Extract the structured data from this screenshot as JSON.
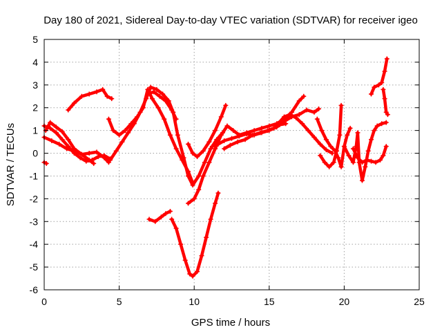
{
  "chart_data": {
    "type": "scatter",
    "title": "Day 180 of 2021, Sidereal Day-to-day VTEC variation (SDTVAR) for receiver igeo",
    "xlabel": "GPS time / hours",
    "ylabel": "SDTVAR / TECUs",
    "xlim": [
      0,
      25
    ],
    "ylim": [
      -6,
      5
    ],
    "xticks": [
      "0",
      "5",
      "10",
      "15",
      "20",
      "25"
    ],
    "yticks": [
      "-6",
      "-5",
      "-4",
      "-3",
      "-2",
      "-1",
      "0",
      "1",
      "2",
      "3",
      "4",
      "5"
    ],
    "grid": true,
    "marker": "plus",
    "color": "#ff0000",
    "series": [
      {
        "points": [
          [
            0.0,
            -0.4
          ],
          [
            0.15,
            -0.45
          ]
        ]
      },
      {
        "points": [
          [
            0.0,
            1.2
          ],
          [
            0.4,
            1.1
          ],
          [
            0.8,
            0.9
          ],
          [
            1.2,
            0.6
          ],
          [
            1.6,
            0.3
          ],
          [
            2.0,
            0.0
          ],
          [
            2.4,
            -0.2
          ],
          [
            2.8,
            -0.35
          ],
          [
            3.2,
            -0.3
          ],
          [
            3.6,
            -0.15
          ],
          [
            4.0,
            -0.1
          ],
          [
            4.4,
            -0.25
          ]
        ]
      },
      {
        "points": [
          [
            0.0,
            0.7
          ],
          [
            0.5,
            0.55
          ],
          [
            1.0,
            0.4
          ],
          [
            1.5,
            0.2
          ],
          [
            2.0,
            0.1
          ],
          [
            2.5,
            -0.05
          ],
          [
            3.0,
            0.0
          ],
          [
            3.5,
            0.05
          ],
          [
            4.0,
            -0.2
          ],
          [
            4.3,
            -0.4
          ]
        ]
      },
      {
        "points": [
          [
            0.1,
            1.0
          ],
          [
            0.4,
            1.35
          ],
          [
            0.8,
            1.15
          ],
          [
            1.2,
            0.95
          ],
          [
            1.6,
            0.6
          ],
          [
            2.0,
            0.2
          ],
          [
            2.5,
            -0.05
          ],
          [
            3.0,
            -0.3
          ],
          [
            3.3,
            -0.45
          ]
        ]
      },
      {
        "points": [
          [
            1.6,
            1.9
          ],
          [
            2.0,
            2.2
          ],
          [
            2.5,
            2.5
          ],
          [
            3.0,
            2.6
          ],
          [
            3.5,
            2.7
          ],
          [
            3.9,
            2.8
          ],
          [
            4.2,
            2.5
          ],
          [
            4.5,
            2.4
          ]
        ]
      },
      {
        "points": [
          [
            4.3,
            1.5
          ],
          [
            4.6,
            1.0
          ],
          [
            5.0,
            0.8
          ],
          [
            5.4,
            1.0
          ],
          [
            5.8,
            1.3
          ],
          [
            6.2,
            1.6
          ],
          [
            6.6,
            2.0
          ],
          [
            6.9,
            2.8
          ],
          [
            7.2,
            2.4
          ],
          [
            7.6,
            2.0
          ],
          [
            8.0,
            1.5
          ],
          [
            8.4,
            0.8
          ],
          [
            8.8,
            0.2
          ],
          [
            9.2,
            -0.3
          ],
          [
            9.6,
            -0.8
          ],
          [
            9.9,
            -1.3
          ]
        ]
      },
      {
        "points": [
          [
            4.4,
            -0.3
          ],
          [
            4.8,
            0.1
          ],
          [
            5.2,
            0.5
          ],
          [
            5.6,
            0.9
          ],
          [
            6.0,
            1.3
          ],
          [
            6.4,
            1.8
          ],
          [
            6.8,
            2.4
          ],
          [
            7.1,
            2.9
          ],
          [
            7.5,
            2.8
          ],
          [
            7.9,
            2.6
          ],
          [
            8.3,
            2.3
          ],
          [
            8.6,
            1.8
          ],
          [
            8.9,
            0.8
          ],
          [
            9.3,
            -0.2
          ],
          [
            9.6,
            -1.0
          ],
          [
            9.9,
            -1.4
          ],
          [
            10.3,
            -1.0
          ],
          [
            10.7,
            -0.4
          ],
          [
            11.1,
            0.2
          ],
          [
            11.5,
            0.6
          ],
          [
            11.9,
            0.9
          ]
        ]
      },
      {
        "points": [
          [
            6.9,
            2.6
          ],
          [
            7.3,
            2.7
          ],
          [
            7.7,
            2.5
          ],
          [
            8.1,
            2.3
          ],
          [
            8.5,
            1.9
          ],
          [
            8.8,
            1.5
          ]
        ]
      },
      {
        "points": [
          [
            7.0,
            -2.9
          ],
          [
            7.4,
            -3.0
          ],
          [
            7.8,
            -2.8
          ],
          [
            8.1,
            -2.65
          ],
          [
            8.4,
            -2.55
          ]
        ]
      },
      {
        "points": [
          [
            8.5,
            -2.9
          ],
          [
            8.8,
            -3.3
          ],
          [
            9.1,
            -4.0
          ],
          [
            9.4,
            -4.7
          ],
          [
            9.7,
            -5.3
          ],
          [
            9.9,
            -5.4
          ],
          [
            10.2,
            -5.2
          ],
          [
            10.5,
            -4.5
          ],
          [
            10.8,
            -3.7
          ],
          [
            11.1,
            -2.9
          ],
          [
            11.4,
            -2.2
          ],
          [
            11.6,
            -1.75
          ]
        ]
      },
      {
        "points": [
          [
            9.6,
            -2.2
          ],
          [
            10.0,
            -2.0
          ],
          [
            10.3,
            -1.6
          ],
          [
            10.6,
            -1.0
          ],
          [
            11.0,
            -0.4
          ],
          [
            11.4,
            0.2
          ],
          [
            11.8,
            0.8
          ],
          [
            12.2,
            1.2
          ],
          [
            12.6,
            1.0
          ],
          [
            13.0,
            0.8
          ],
          [
            13.5,
            0.9
          ],
          [
            14.0,
            1.0
          ],
          [
            14.5,
            1.1
          ],
          [
            15.0,
            1.2
          ],
          [
            15.5,
            1.3
          ],
          [
            16.0,
            1.5
          ],
          [
            16.5,
            1.8
          ],
          [
            17.0,
            2.3
          ],
          [
            17.3,
            2.5
          ]
        ]
      },
      {
        "points": [
          [
            9.6,
            0.4
          ],
          [
            9.9,
            0.0
          ],
          [
            10.2,
            -0.15
          ],
          [
            10.6,
            0.1
          ],
          [
            11.0,
            0.5
          ],
          [
            11.4,
            1.0
          ],
          [
            11.8,
            1.6
          ],
          [
            12.1,
            2.1
          ]
        ]
      },
      {
        "points": [
          [
            11.2,
            0.3
          ],
          [
            11.6,
            0.4
          ],
          [
            12.0,
            0.55
          ],
          [
            12.5,
            0.65
          ],
          [
            13.0,
            0.75
          ],
          [
            13.5,
            0.85
          ],
          [
            14.0,
            0.8
          ],
          [
            14.5,
            0.9
          ],
          [
            15.0,
            1.0
          ],
          [
            15.5,
            1.15
          ],
          [
            16.0,
            1.4
          ],
          [
            16.5,
            1.6
          ],
          [
            17.0,
            1.7
          ],
          [
            17.5,
            1.9
          ],
          [
            18.0,
            1.8
          ],
          [
            18.3,
            1.95
          ]
        ]
      },
      {
        "points": [
          [
            12.0,
            0.2
          ],
          [
            12.4,
            0.35
          ],
          [
            12.9,
            0.5
          ],
          [
            13.4,
            0.6
          ],
          [
            13.9,
            0.8
          ],
          [
            14.4,
            0.9
          ],
          [
            14.9,
            1.0
          ],
          [
            15.3,
            1.1
          ],
          [
            15.7,
            1.25
          ],
          [
            16.1,
            1.3
          ]
        ]
      },
      {
        "points": [
          [
            15.6,
            1.3
          ],
          [
            16.0,
            1.6
          ],
          [
            16.4,
            1.7
          ],
          [
            16.8,
            1.55
          ],
          [
            17.2,
            1.3
          ],
          [
            17.6,
            1.0
          ],
          [
            18.0,
            0.7
          ],
          [
            18.4,
            0.4
          ],
          [
            18.8,
            0.15
          ],
          [
            19.2,
            0.0
          ]
        ]
      },
      {
        "points": [
          [
            18.2,
            1.5
          ],
          [
            18.5,
            1.0
          ],
          [
            18.8,
            0.6
          ],
          [
            19.1,
            0.3
          ],
          [
            19.4,
            0.1
          ],
          [
            19.6,
            -0.2
          ],
          [
            19.8,
            -0.6
          ],
          [
            20.0,
            0.3
          ],
          [
            20.2,
            0.8
          ],
          [
            20.4,
            1.1
          ]
        ]
      },
      {
        "points": [
          [
            18.4,
            -0.1
          ],
          [
            18.7,
            -0.4
          ],
          [
            19.0,
            -0.6
          ],
          [
            19.3,
            -0.4
          ],
          [
            19.5,
            0.1
          ],
          [
            19.7,
            0.8
          ],
          [
            19.8,
            2.1
          ]
        ]
      },
      {
        "points": [
          [
            20.0,
            0.3
          ],
          [
            20.3,
            -0.1
          ],
          [
            20.6,
            -0.4
          ],
          [
            20.8,
            0.3
          ],
          [
            20.9,
            0.9
          ],
          [
            21.0,
            -0.4
          ],
          [
            21.2,
            -1.2
          ],
          [
            21.4,
            -0.6
          ],
          [
            21.6,
            0.1
          ],
          [
            21.8,
            0.6
          ],
          [
            22.0,
            1.0
          ],
          [
            22.2,
            1.2
          ],
          [
            22.5,
            1.3
          ],
          [
            22.8,
            1.35
          ]
        ]
      },
      {
        "points": [
          [
            20.6,
            0.2
          ],
          [
            20.9,
            -0.2
          ],
          [
            21.2,
            -0.4
          ],
          [
            21.5,
            -0.3
          ],
          [
            21.8,
            -0.35
          ],
          [
            22.1,
            -0.4
          ],
          [
            22.4,
            -0.3
          ],
          [
            22.6,
            -0.1
          ],
          [
            22.8,
            0.3
          ]
        ]
      },
      {
        "points": [
          [
            21.8,
            2.6
          ],
          [
            22.0,
            2.9
          ],
          [
            22.3,
            3.0
          ],
          [
            22.5,
            3.1
          ],
          [
            22.7,
            3.6
          ],
          [
            22.85,
            4.15
          ]
        ]
      },
      {
        "points": [
          [
            22.6,
            2.8
          ],
          [
            22.7,
            2.4
          ],
          [
            22.8,
            1.8
          ],
          [
            22.9,
            1.7
          ]
        ]
      }
    ]
  }
}
